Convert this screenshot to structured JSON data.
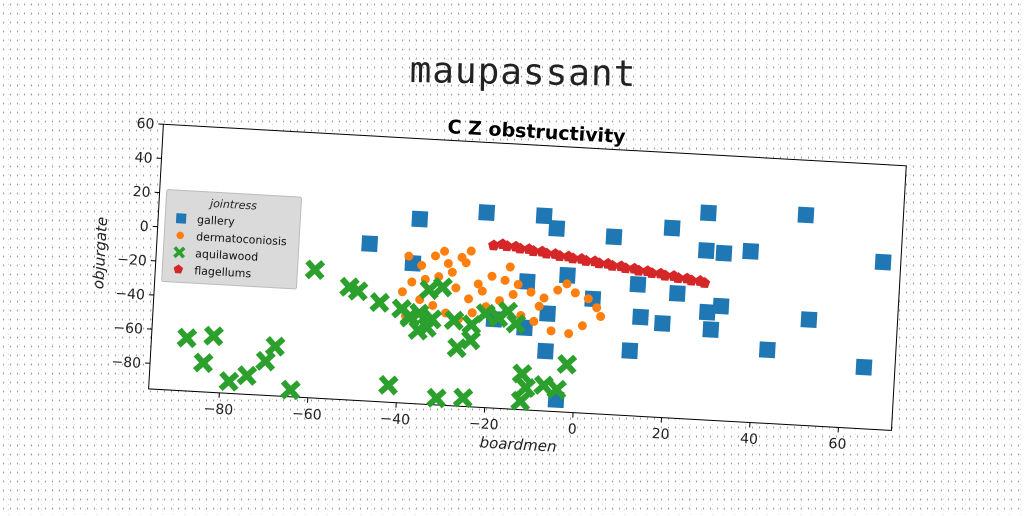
{
  "page": {
    "title": "maupassant"
  },
  "chart_data": {
    "type": "scatter",
    "title": "C Z obstructivity",
    "xlabel": "boardmen",
    "ylabel": "objurgate",
    "xlim": [
      -96,
      72
    ],
    "ylim": [
      -95,
      60
    ],
    "xticks": [
      -80,
      -60,
      -40,
      -20,
      0,
      20,
      40,
      60
    ],
    "yticks": [
      60,
      40,
      20,
      0,
      -20,
      -40,
      -60,
      -80
    ],
    "grid": false,
    "legend": {
      "title": "jointress",
      "placement": "center-left"
    },
    "series": [
      {
        "name": "gallery",
        "marker": "square",
        "color": "#1f77b4",
        "points": [
          [
            -48,
            -3
          ],
          [
            -37,
            13
          ],
          [
            -38,
            -13
          ],
          [
            -22,
            19
          ],
          [
            -9,
            19
          ],
          [
            -6,
            12
          ],
          [
            7,
            9
          ],
          [
            20,
            16
          ],
          [
            28,
            26
          ],
          [
            28,
            4
          ],
          [
            32,
            3
          ],
          [
            38,
            5
          ],
          [
            50,
            28
          ],
          [
            68,
            3
          ],
          [
            -3,
            -15
          ],
          [
            -12,
            -20
          ],
          [
            3,
            -28
          ],
          [
            13,
            -18
          ],
          [
            22,
            -22
          ],
          [
            14,
            -37
          ],
          [
            19,
            -40
          ],
          [
            29,
            -32
          ],
          [
            32,
            -28
          ],
          [
            30,
            -42
          ],
          [
            -19,
            -43
          ],
          [
            -12,
            -47
          ],
          [
            -7,
            -38
          ],
          [
            -7,
            -60
          ],
          [
            -4,
            -88
          ],
          [
            12,
            -57
          ],
          [
            43,
            -52
          ],
          [
            52,
            -33
          ],
          [
            65,
            -59
          ]
        ]
      },
      {
        "name": "dermatoconiosis",
        "marker": "circle",
        "color": "#ff7f0e",
        "points": [
          [
            -39,
            -9
          ],
          [
            -36,
            -14
          ],
          [
            -33,
            -8
          ],
          [
            -31,
            -5
          ],
          [
            -30,
            -12
          ],
          [
            -27,
            -8
          ],
          [
            -25,
            -4
          ],
          [
            -26,
            -11
          ],
          [
            -29,
            -17
          ],
          [
            -32,
            -20
          ],
          [
            -35,
            -22
          ],
          [
            -38,
            -24
          ],
          [
            -40,
            -30
          ],
          [
            -36,
            -34
          ],
          [
            -33,
            -37
          ],
          [
            -30,
            -41
          ],
          [
            -27,
            -44
          ],
          [
            -24,
            -40
          ],
          [
            -21,
            -36
          ],
          [
            -18,
            -32
          ],
          [
            -15,
            -28
          ],
          [
            -22,
            -27
          ],
          [
            -17,
            -20
          ],
          [
            -14,
            -22
          ],
          [
            -11,
            -26
          ],
          [
            -8,
            -29
          ],
          [
            -5,
            -24
          ],
          [
            -3,
            -20
          ],
          [
            -1,
            -25
          ],
          [
            2,
            -28
          ],
          [
            4,
            -33
          ],
          [
            5,
            -38
          ],
          [
            1,
            -44
          ],
          [
            -2,
            -49
          ],
          [
            -6,
            -48
          ],
          [
            -10,
            -43
          ],
          [
            -13,
            -40
          ],
          [
            -9,
            -34
          ],
          [
            -39,
            -44
          ],
          [
            -37,
            -48
          ],
          [
            -23,
            -23
          ],
          [
            -20,
            -18
          ],
          [
            -28,
            -26
          ],
          [
            -25,
            -32
          ],
          [
            -16,
            -12
          ]
        ]
      },
      {
        "name": "aquilawood",
        "marker": "x",
        "color": "#2ca02c",
        "points": [
          [
            -88,
            -64
          ],
          [
            -84,
            -78
          ],
          [
            -82,
            -62
          ],
          [
            -78,
            -88
          ],
          [
            -74,
            -84
          ],
          [
            -70,
            -75
          ],
          [
            -68,
            -66
          ],
          [
            -64,
            -91
          ],
          [
            -60,
            -20
          ],
          [
            -52,
            -29
          ],
          [
            -50,
            -31
          ],
          [
            -45,
            -37
          ],
          [
            -38,
            -45
          ],
          [
            -36,
            -42
          ],
          [
            -34,
            -28
          ],
          [
            -31,
            -26
          ],
          [
            -28,
            -45
          ],
          [
            -27,
            -61
          ],
          [
            -24,
            -56
          ],
          [
            -24,
            -47
          ],
          [
            -21,
            -40
          ],
          [
            -18,
            -42
          ],
          [
            -16,
            -38
          ],
          [
            -14,
            -45
          ],
          [
            -12,
            -74
          ],
          [
            -11,
            -82
          ],
          [
            -12,
            -90
          ],
          [
            -7,
            -80
          ],
          [
            -4,
            -82
          ],
          [
            -2,
            -67
          ],
          [
            -42,
            -85
          ],
          [
            -38,
            -44
          ],
          [
            -34,
            -50
          ],
          [
            -31,
            -91
          ],
          [
            -25,
            -90
          ],
          [
            -40,
            -40
          ],
          [
            -33,
            -45
          ],
          [
            -36,
            -52
          ]
        ]
      },
      {
        "name": "flagellums",
        "marker": "pentagon",
        "color": "#d62728",
        "points": [
          [
            -20,
            0
          ],
          [
            -17,
            0
          ],
          [
            -14,
            -1
          ],
          [
            -11,
            -2
          ],
          [
            -8,
            -3
          ],
          [
            -5,
            -4
          ],
          [
            -2,
            -5
          ],
          [
            1,
            -6
          ],
          [
            4,
            -7
          ],
          [
            7,
            -8
          ],
          [
            10,
            -9
          ],
          [
            13,
            -10
          ],
          [
            16,
            -11
          ],
          [
            19,
            -12
          ],
          [
            22,
            -13
          ],
          [
            25,
            -14
          ],
          [
            28,
            -15
          ],
          [
            -18,
            1
          ],
          [
            -15,
            0
          ],
          [
            -12,
            -1
          ],
          [
            -9,
            -2
          ],
          [
            -6,
            -3
          ],
          [
            -3,
            -4
          ],
          [
            0,
            -5
          ],
          [
            3,
            -6
          ],
          [
            6,
            -7
          ],
          [
            9,
            -8
          ],
          [
            12,
            -9
          ],
          [
            15,
            -10
          ],
          [
            18,
            -11
          ],
          [
            21,
            -12
          ],
          [
            24,
            -13
          ],
          [
            27,
            -14
          ]
        ]
      }
    ]
  }
}
